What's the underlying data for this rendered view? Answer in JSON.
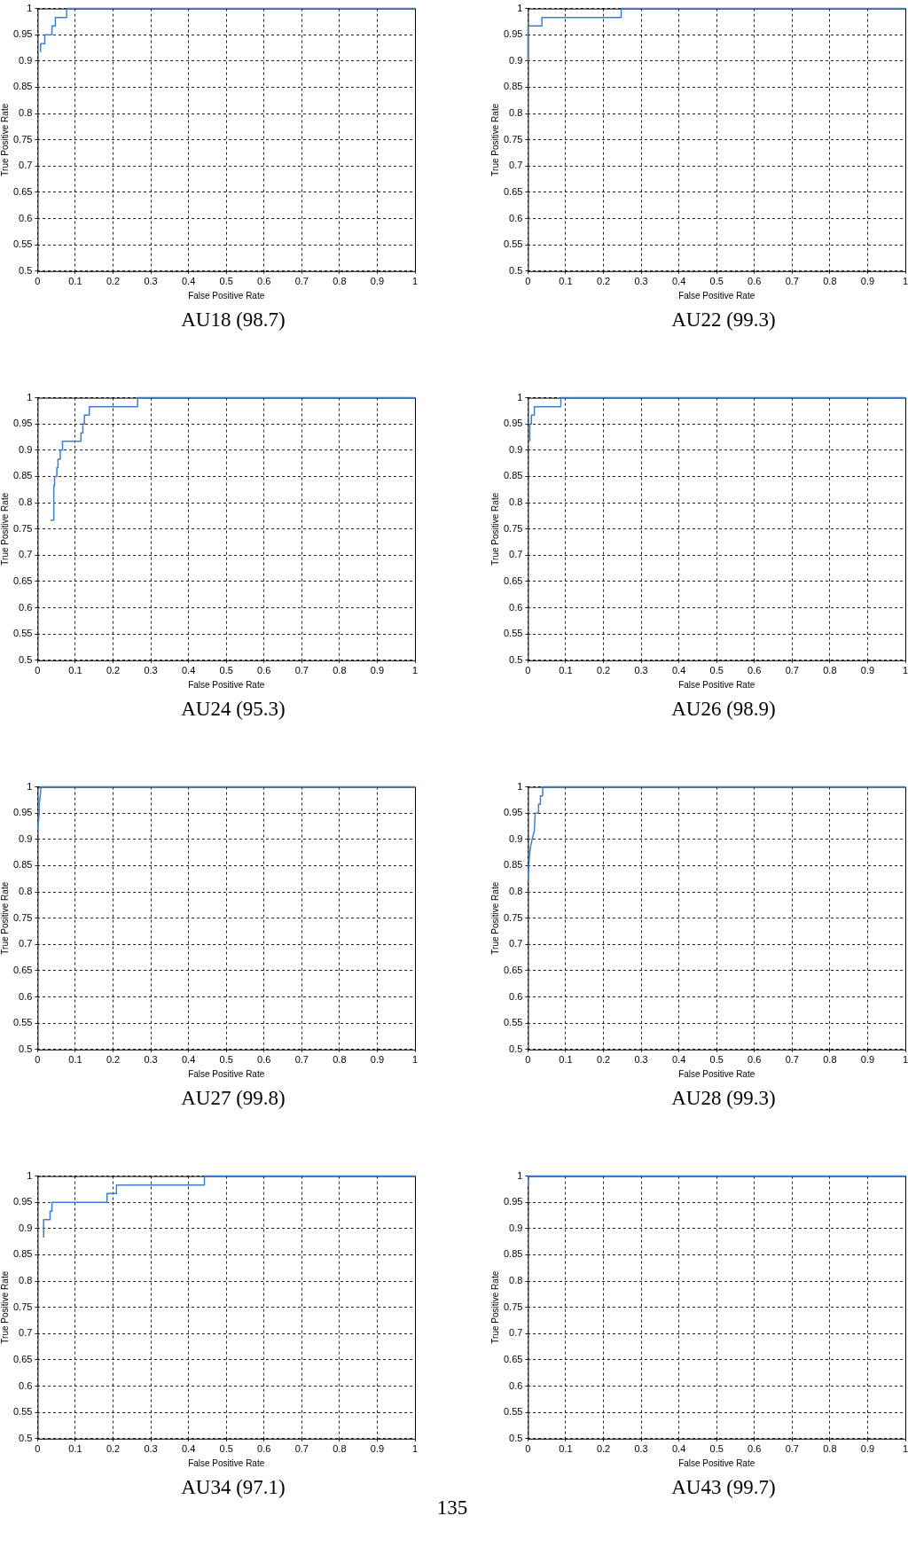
{
  "chart_data": [
    {
      "type": "line",
      "title": "AU18 (98.7)",
      "xlabel": "False Positive Rate",
      "ylabel": "True Positive Rate",
      "xlim": [
        0,
        1
      ],
      "ylim": [
        0.5,
        1
      ],
      "xticks": [
        0,
        0.1,
        0.2,
        0.3,
        0.4,
        0.5,
        0.6,
        0.7,
        0.8,
        0.9,
        1
      ],
      "yticks": [
        0.5,
        0.55,
        0.6,
        0.65,
        0.7,
        0.75,
        0.8,
        0.85,
        0.9,
        0.95,
        1
      ],
      "grid": true,
      "legend": false,
      "marker": "none",
      "line_style": "solid",
      "series": [
        {
          "color": "#3a7fd5",
          "x": [
            0.008,
            0.008,
            0.019,
            0.019,
            0.038,
            0.038,
            0.047,
            0.047,
            0.077,
            0.077,
            1
          ],
          "values": [
            0.917,
            0.933,
            0.933,
            0.95,
            0.95,
            0.967,
            0.967,
            0.983,
            0.983,
            1,
            1
          ]
        }
      ]
    },
    {
      "type": "line",
      "title": "AU22 (99.3)",
      "xlabel": "False Positive Rate",
      "ylabel": "True Positive Rate",
      "xlim": [
        0,
        1
      ],
      "ylim": [
        0.5,
        1
      ],
      "xticks": [
        0,
        0.1,
        0.2,
        0.3,
        0.4,
        0.5,
        0.6,
        0.7,
        0.8,
        0.9,
        1
      ],
      "yticks": [
        0.5,
        0.55,
        0.6,
        0.65,
        0.7,
        0.75,
        0.8,
        0.85,
        0.9,
        0.95,
        1
      ],
      "grid": true,
      "legend": false,
      "marker": "none",
      "line_style": "solid",
      "series": [
        {
          "color": "#3a7fd5",
          "x": [
            0,
            0,
            0.037,
            0.037,
            0.247,
            0.247,
            1
          ],
          "values": [
            0.9,
            0.967,
            0.967,
            0.983,
            0.983,
            1,
            1
          ]
        }
      ]
    },
    {
      "type": "line",
      "title": "AU24 (95.3)",
      "xlabel": "False Positive Rate",
      "ylabel": "True Positive Rate",
      "xlim": [
        0,
        1
      ],
      "ylim": [
        0.5,
        1
      ],
      "xticks": [
        0,
        0.1,
        0.2,
        0.3,
        0.4,
        0.5,
        0.6,
        0.7,
        0.8,
        0.9,
        1
      ],
      "yticks": [
        0.5,
        0.55,
        0.6,
        0.65,
        0.7,
        0.75,
        0.8,
        0.85,
        0.9,
        0.95,
        1
      ],
      "grid": true,
      "legend": false,
      "marker": "none",
      "line_style": "solid",
      "series": [
        {
          "color": "#3a7fd5",
          "x": [
            0.034,
            0.043,
            0.043,
            0.045,
            0.045,
            0.051,
            0.051,
            0.054,
            0.054,
            0.06,
            0.06,
            0.066,
            0.066,
            0.115,
            0.115,
            0.12,
            0.12,
            0.124,
            0.124,
            0.137,
            0.137,
            0.265,
            0.265,
            1
          ],
          "values": [
            0.767,
            0.767,
            0.833,
            0.833,
            0.85,
            0.85,
            0.867,
            0.867,
            0.883,
            0.883,
            0.9,
            0.9,
            0.917,
            0.917,
            0.933,
            0.933,
            0.95,
            0.95,
            0.967,
            0.967,
            0.983,
            0.983,
            1,
            1
          ]
        }
      ]
    },
    {
      "type": "line",
      "title": "AU26 (98.9)",
      "xlabel": "False Positive Rate",
      "ylabel": "True Positive Rate",
      "xlim": [
        0,
        1
      ],
      "ylim": [
        0.5,
        1
      ],
      "xticks": [
        0,
        0.1,
        0.2,
        0.3,
        0.4,
        0.5,
        0.6,
        0.7,
        0.8,
        0.9,
        1
      ],
      "yticks": [
        0.5,
        0.55,
        0.6,
        0.65,
        0.7,
        0.75,
        0.8,
        0.85,
        0.9,
        0.95,
        1
      ],
      "grid": true,
      "legend": false,
      "marker": "none",
      "line_style": "solid",
      "series": [
        {
          "color": "#3a7fd5",
          "x": [
            0.005,
            0.005,
            0.009,
            0.009,
            0.017,
            0.017,
            0.087,
            0.087,
            1
          ],
          "values": [
            0.917,
            0.95,
            0.95,
            0.967,
            0.967,
            0.983,
            0.983,
            1,
            1
          ]
        }
      ]
    },
    {
      "type": "line",
      "title": "AU27 (99.8)",
      "xlabel": "False Positive Rate",
      "ylabel": "True Positive Rate",
      "xlim": [
        0,
        1
      ],
      "ylim": [
        0.5,
        1
      ],
      "xticks": [
        0,
        0.1,
        0.2,
        0.3,
        0.4,
        0.5,
        0.6,
        0.7,
        0.8,
        0.9,
        1
      ],
      "yticks": [
        0.5,
        0.55,
        0.6,
        0.65,
        0.7,
        0.75,
        0.8,
        0.85,
        0.9,
        0.95,
        1
      ],
      "grid": true,
      "legend": false,
      "marker": "none",
      "line_style": "solid",
      "series": [
        {
          "color": "#3a7fd5",
          "x": [
            0,
            0.004,
            0.004,
            0.007,
            0.009,
            1
          ],
          "values": [
            0.917,
            0.95,
            0.967,
            0.983,
            1,
            1
          ]
        }
      ]
    },
    {
      "type": "line",
      "title": "AU28 (99.3)",
      "xlabel": "False Positive Rate",
      "ylabel": "True Positive Rate",
      "xlim": [
        0,
        1
      ],
      "ylim": [
        0.5,
        1
      ],
      "xticks": [
        0,
        0.1,
        0.2,
        0.3,
        0.4,
        0.5,
        0.6,
        0.7,
        0.8,
        0.9,
        1
      ],
      "yticks": [
        0.5,
        0.55,
        0.6,
        0.65,
        0.7,
        0.75,
        0.8,
        0.85,
        0.9,
        0.95,
        1
      ],
      "grid": true,
      "legend": false,
      "marker": "none",
      "line_style": "solid",
      "series": [
        {
          "color": "#3a7fd5",
          "x": [
            0,
            0.002,
            0.006,
            0.011,
            0.017,
            0.019,
            0.028,
            0.028,
            0.033,
            0.033,
            0.039,
            0.039,
            1
          ],
          "values": [
            0.817,
            0.85,
            0.883,
            0.9,
            0.917,
            0.95,
            0.95,
            0.967,
            0.967,
            0.983,
            0.983,
            1,
            1
          ]
        }
      ]
    },
    {
      "type": "line",
      "title": "AU34 (97.1)",
      "xlabel": "False Positive Rate",
      "ylabel": "True Positive Rate",
      "xlim": [
        0,
        1
      ],
      "ylim": [
        0.5,
        1
      ],
      "xticks": [
        0,
        0.1,
        0.2,
        0.3,
        0.4,
        0.5,
        0.6,
        0.7,
        0.8,
        0.9,
        1
      ],
      "yticks": [
        0.5,
        0.55,
        0.6,
        0.65,
        0.7,
        0.75,
        0.8,
        0.85,
        0.9,
        0.95,
        1
      ],
      "grid": true,
      "legend": false,
      "marker": "none",
      "line_style": "solid",
      "annotations": [
        "135"
      ],
      "series": [
        {
          "color": "#3a7fd5",
          "x": [
            0.016,
            0.016,
            0.033,
            0.033,
            0.038,
            0.038,
            0.184,
            0.184,
            0.209,
            0.209,
            0.442,
            0.442,
            1
          ],
          "values": [
            0.883,
            0.917,
            0.917,
            0.933,
            0.933,
            0.95,
            0.95,
            0.967,
            0.967,
            0.983,
            0.983,
            1,
            1
          ]
        }
      ]
    },
    {
      "type": "line",
      "title": "AU43 (99.7)",
      "xlabel": "False Positive Rate",
      "ylabel": "True Positive Rate",
      "xlim": [
        0,
        1
      ],
      "ylim": [
        0.5,
        1
      ],
      "xticks": [
        0,
        0.1,
        0.2,
        0.3,
        0.4,
        0.5,
        0.6,
        0.7,
        0.8,
        0.9,
        1
      ],
      "yticks": [
        0.5,
        0.55,
        0.6,
        0.65,
        0.7,
        0.75,
        0.8,
        0.85,
        0.9,
        0.95,
        1
      ],
      "grid": true,
      "legend": false,
      "marker": "none",
      "line_style": "solid",
      "series": [
        {
          "color": "#3a7fd5",
          "x": [
            0,
            0.002,
            1
          ],
          "values": [
            0.983,
            1,
            1
          ]
        }
      ]
    }
  ]
}
